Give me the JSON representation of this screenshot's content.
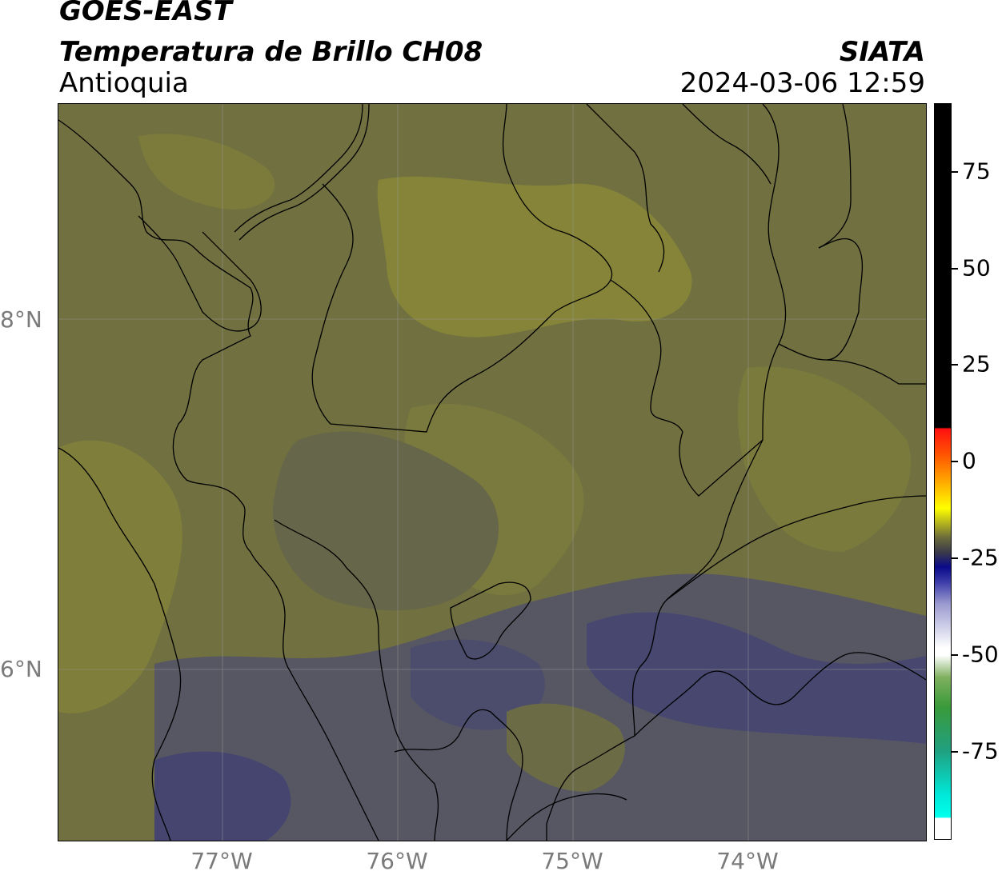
{
  "header": {
    "satellite": "GOES-EAST",
    "product": "Temperatura de Brillo CH08",
    "region": "Antioquia",
    "organization": "SIATA",
    "datetime": "2024-03-06 12:59"
  },
  "map": {
    "lat_labels": [
      "8°N",
      "6°N"
    ],
    "lon_labels": [
      "77°W",
      "76°W",
      "75°W",
      "74°W"
    ],
    "colors": {
      "background": "#6f6f3e",
      "warm_band": "#868439",
      "mid_band": "#6d6d46",
      "cool_band": "#55556a",
      "cold_band": "#45456e",
      "borders": "#000000",
      "grid": "#9a9a9a"
    }
  },
  "colorbar": {
    "labels": [
      "75",
      "50",
      "25",
      "0",
      "-25",
      "-50",
      "-75"
    ],
    "min": -93,
    "max": 92
  }
}
